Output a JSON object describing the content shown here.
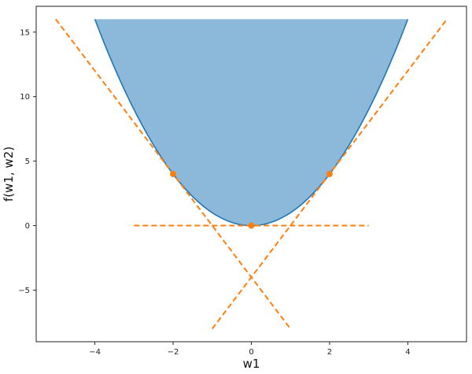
{
  "chart_data": {
    "type": "line",
    "title": "",
    "xlabel": "w1",
    "ylabel": "f(w1, w2)",
    "xlim": [
      -5.5,
      5.5
    ],
    "ylim": [
      -9,
      17
    ],
    "xticks": [
      -4,
      -2,
      0,
      2,
      4
    ],
    "yticks": [
      -5,
      0,
      5,
      10,
      15
    ],
    "grid": false,
    "legend": "none",
    "series": [
      {
        "kind": "curve-filled",
        "function": "w1^2",
        "x": [
          -4,
          -3.5,
          -3,
          -2.5,
          -2,
          -1.5,
          -1,
          -0.5,
          0,
          0.5,
          1,
          1.5,
          2,
          2.5,
          3,
          3.5,
          4
        ],
        "y": [
          16,
          12.25,
          9,
          6.25,
          4,
          2.25,
          1,
          0.25,
          0,
          0.25,
          1,
          2.25,
          4,
          6.25,
          9,
          12.25,
          16
        ],
        "fill_to": 16,
        "color": "#1f77b4",
        "fill_color": "#8cb8d9"
      },
      {
        "kind": "dashed-line",
        "function": "tangent at w1=-2",
        "x": [
          -5,
          1
        ],
        "y": [
          16,
          -8
        ],
        "color": "#ff7f0e"
      },
      {
        "kind": "dashed-line",
        "function": "tangent at w1=0",
        "x": [
          -3,
          3
        ],
        "y": [
          0,
          0
        ],
        "color": "#ff7f0e"
      },
      {
        "kind": "dashed-line",
        "function": "tangent at w1=2",
        "x": [
          -1,
          5
        ],
        "y": [
          -8,
          16
        ],
        "color": "#ff7f0e"
      },
      {
        "kind": "points",
        "x": [
          -2,
          0,
          2
        ],
        "y": [
          4,
          0,
          4
        ],
        "color": "#ff7f0e"
      }
    ]
  }
}
